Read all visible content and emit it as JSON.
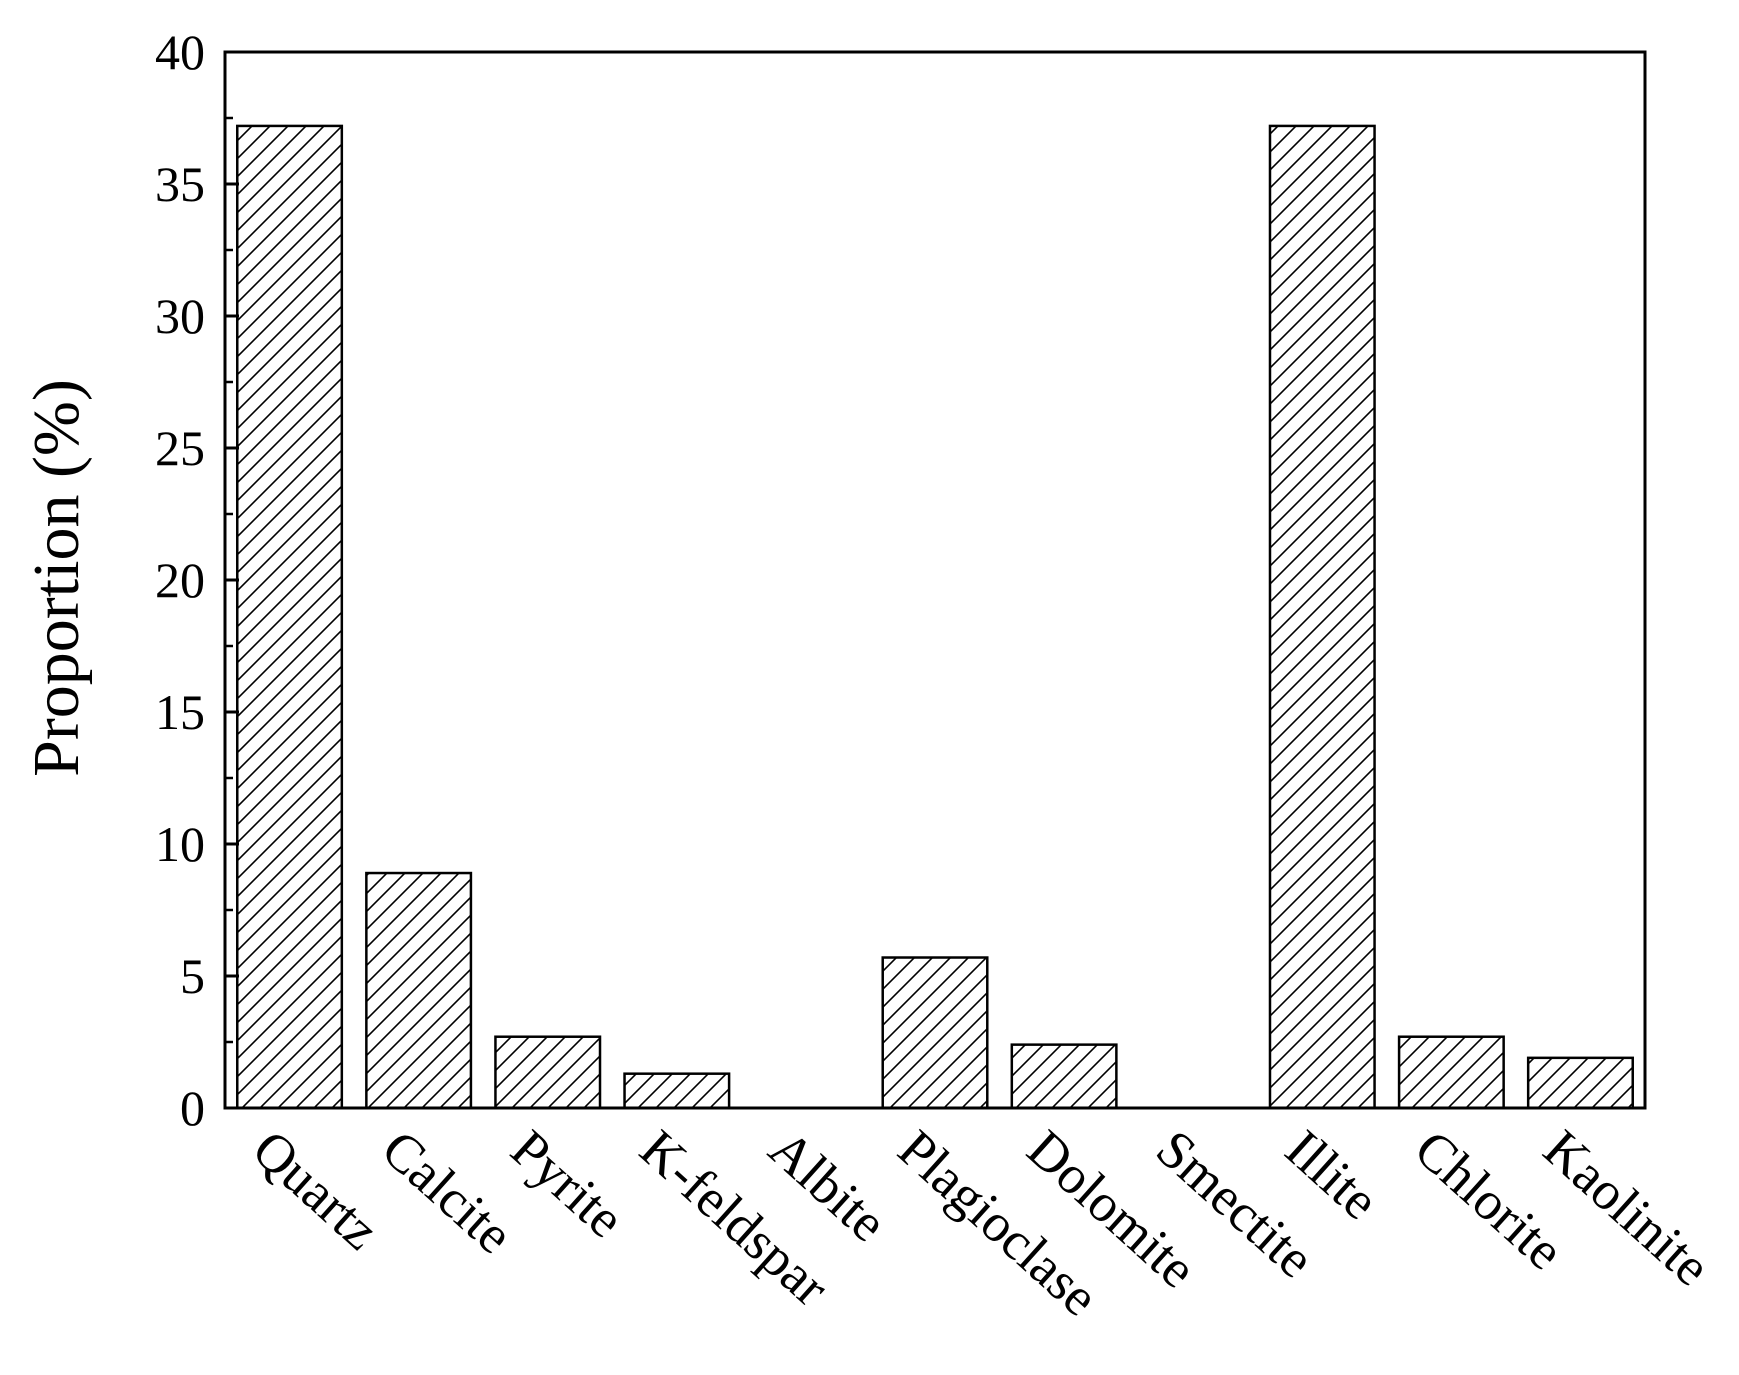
{
  "chart_data": {
    "type": "bar",
    "title": "",
    "xlabel": "",
    "ylabel": "Proportion (%)",
    "ylim": [
      0,
      40
    ],
    "yticks": [
      0,
      5,
      10,
      15,
      20,
      25,
      30,
      35,
      40
    ],
    "categories": [
      "Quartz",
      "Calcite",
      "Pyrite",
      "K-feldspar",
      "Albite",
      "Plagioclase",
      "Dolomite",
      "Smectite",
      "Illite",
      "Chlorite",
      "Kaolinite"
    ],
    "values": [
      37.2,
      8.9,
      2.7,
      1.3,
      0,
      5.7,
      2.4,
      0,
      37.2,
      2.7,
      1.9
    ],
    "bar_fill": "hatched",
    "grid": false,
    "legend": "none",
    "colors": {
      "bar_stroke": "#000000",
      "hatch": "#000000",
      "background": "#ffffff"
    }
  }
}
